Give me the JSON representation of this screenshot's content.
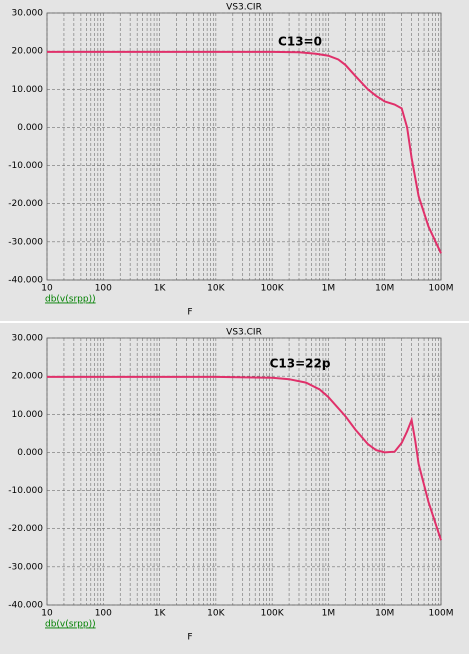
{
  "chart_data": [
    {
      "type": "line",
      "title": "VS3.CIR",
      "x_label": "F",
      "annotation": "C13=0",
      "log_x": true,
      "grid": true,
      "xlim": [
        10,
        100000000
      ],
      "xticks": [
        10,
        100,
        {
          "value": 1000,
          "label": "1K"
        },
        {
          "value": 10000,
          "label": "10K"
        },
        {
          "value": 100000,
          "label": "100K"
        },
        {
          "value": 1000000,
          "label": "1M"
        },
        {
          "value": 10000000,
          "label": "10M"
        },
        {
          "value": 100000000,
          "label": "100M"
        }
      ],
      "ylim": [
        -40,
        30
      ],
      "yticks": [
        {
          "value": 30,
          "label": "30.000"
        },
        {
          "value": 20,
          "label": "20.000"
        },
        {
          "value": 10,
          "label": "10.000"
        },
        {
          "value": 0,
          "label": "0.000"
        },
        {
          "value": -10,
          "label": "-10.000"
        },
        {
          "value": -20,
          "label": "-20.000"
        },
        {
          "value": -30,
          "label": "-30.000"
        },
        {
          "value": -40,
          "label": "-40.000"
        }
      ],
      "x": [
        10,
        100,
        1000,
        10000,
        100000,
        300000,
        600000,
        1000000,
        1500000,
        2000000,
        3000000,
        5000000,
        7000000,
        10000000,
        15000000,
        20000000,
        25000000,
        30000000,
        40000000,
        60000000,
        100000000
      ],
      "series": [
        {
          "name": "db(v(srpp))",
          "color": "#e0306a",
          "values": [
            19.8,
            19.8,
            19.8,
            19.8,
            19.8,
            19.7,
            19.3,
            18.8,
            17.8,
            16.4,
            13.5,
            10,
            8.3,
            6.8,
            6,
            5,
            0,
            -8,
            -18,
            -26,
            -33
          ]
        }
      ]
    },
    {
      "type": "line",
      "title": "VS3.CIR",
      "x_label": "F",
      "annotation": "C13=22p",
      "log_x": true,
      "grid": true,
      "xlim": [
        10,
        100000000
      ],
      "xticks": [
        10,
        100,
        {
          "value": 1000,
          "label": "1K"
        },
        {
          "value": 10000,
          "label": "10K"
        },
        {
          "value": 100000,
          "label": "100K"
        },
        {
          "value": 1000000,
          "label": "1M"
        },
        {
          "value": 10000000,
          "label": "10M"
        },
        {
          "value": 100000000,
          "label": "100M"
        }
      ],
      "ylim": [
        -40,
        30
      ],
      "yticks": [
        {
          "value": 30,
          "label": "30.000"
        },
        {
          "value": 20,
          "label": "20.000"
        },
        {
          "value": 10,
          "label": "10.000"
        },
        {
          "value": 0,
          "label": "0.000"
        },
        {
          "value": -10,
          "label": "-10.000"
        },
        {
          "value": -20,
          "label": "-20.000"
        },
        {
          "value": -30,
          "label": "-30.000"
        },
        {
          "value": -40,
          "label": "-40.000"
        }
      ],
      "x": [
        10,
        100,
        1000,
        10000,
        100000,
        200000,
        400000,
        700000,
        1000000,
        2000000,
        3000000,
        5000000,
        7000000,
        10000000,
        15000000,
        20000000,
        25000000,
        30000000,
        35000000,
        40000000,
        60000000,
        100000000
      ],
      "series": [
        {
          "name": "db(v(srpp))",
          "color": "#e0306a",
          "values": [
            19.8,
            19.8,
            19.8,
            19.8,
            19.6,
            19.2,
            18.3,
            16.5,
            14.5,
            9.5,
            6,
            2.2,
            0.6,
            0,
            0.2,
            2.5,
            5.5,
            8.5,
            3,
            -3,
            -13,
            -23
          ]
        }
      ]
    }
  ]
}
